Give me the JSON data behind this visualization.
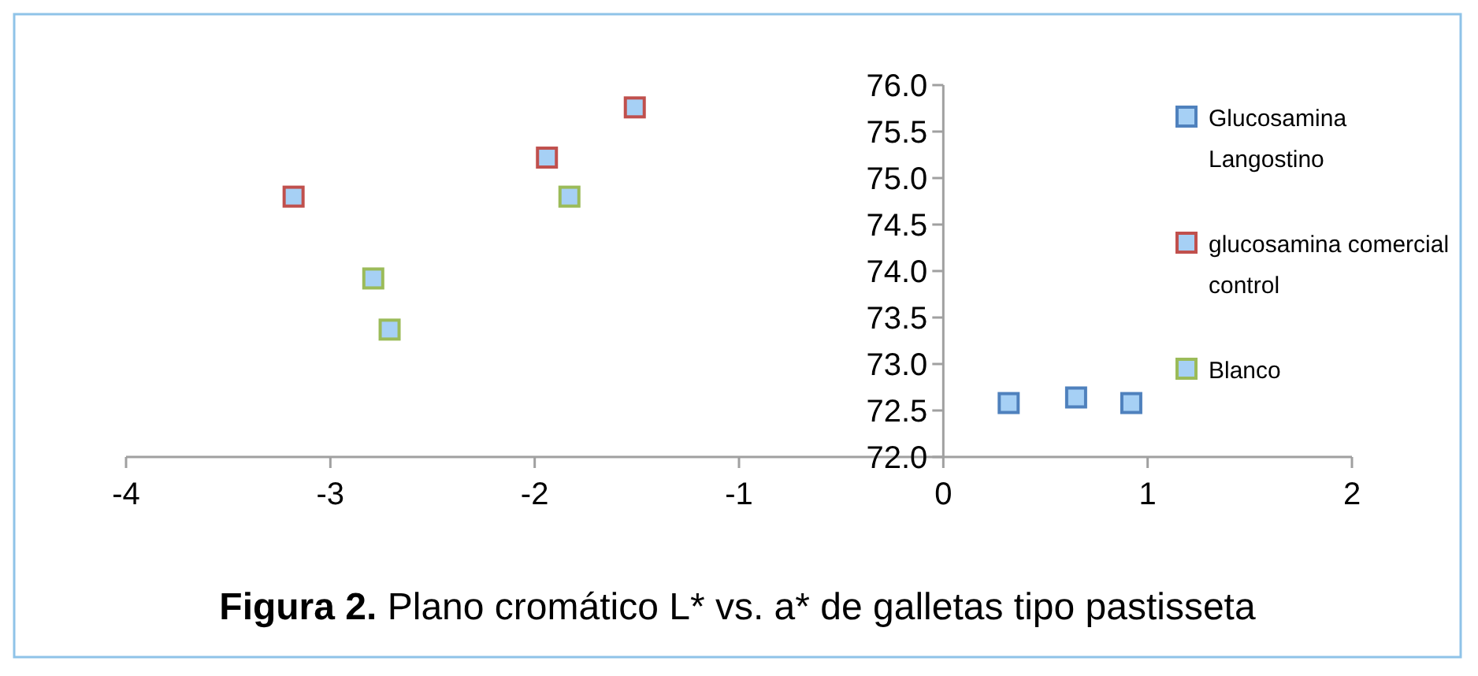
{
  "chart_data": {
    "type": "scatter",
    "title": "Figura 2. Plano cromático L* vs. a* de galletas tipo pastisseta",
    "series": [
      {
        "name": "Glucosamina Langostino",
        "color": "#4f81bd",
        "x": [
          0.32,
          0.65,
          0.92
        ],
        "values": [
          72.58,
          72.64,
          72.58
        ]
      },
      {
        "name": "glucosamina comercial control",
        "color": "#c0504d",
        "x": [
          -3.18,
          -1.94,
          -1.51
        ],
        "values": [
          74.8,
          75.22,
          75.76
        ]
      },
      {
        "name": "Blanco",
        "color": "#9bbb59",
        "x": [
          -2.79,
          -2.71,
          -1.83
        ],
        "values": [
          73.92,
          73.37,
          74.8
        ]
      }
    ],
    "xlim": [
      -4,
      2
    ],
    "xticks": [
      -4,
      -3,
      -2,
      -1,
      0,
      1,
      2
    ],
    "ylim": [
      72,
      76
    ],
    "yticks": [
      {
        "value": 72,
        "label": "72.0"
      },
      {
        "value": 72.5,
        "label": "72.5"
      },
      {
        "value": 73,
        "label": "73.0"
      },
      {
        "value": 73.5,
        "label": "73.5"
      },
      {
        "value": 74,
        "label": "74.0"
      },
      {
        "value": 74.5,
        "label": "74.5"
      },
      {
        "value": 75,
        "label": "75.0"
      },
      {
        "value": 75.5,
        "label": "75.5"
      },
      {
        "value": 76,
        "label": "76.0"
      }
    ],
    "marker": "square",
    "legend": "right",
    "grid": false
  }
}
